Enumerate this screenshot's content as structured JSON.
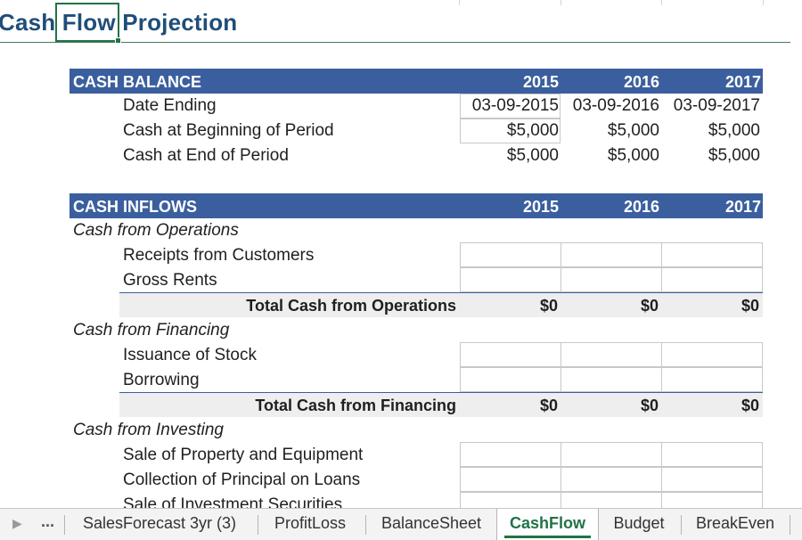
{
  "title": "Cash Flow Projection",
  "cash_balance": {
    "header": "CASH BALANCE",
    "years": [
      "2015",
      "2016",
      "2017"
    ],
    "rows": [
      {
        "label": "Date Ending",
        "values": [
          "03-09-2015",
          "03-09-2016",
          "03-09-2017"
        ]
      },
      {
        "label": "Cash at Beginning of Period",
        "values": [
          "$5,000",
          "$5,000",
          "$5,000"
        ]
      },
      {
        "label": "Cash at End of Period",
        "values": [
          "$5,000",
          "$5,000",
          "$5,000"
        ]
      }
    ]
  },
  "cash_inflows": {
    "header": "CASH INFLOWS",
    "years": [
      "2015",
      "2016",
      "2017"
    ],
    "operations": {
      "heading": "Cash from Operations",
      "items": [
        "Receipts from Customers",
        "Gross Rents"
      ],
      "total_label": "Total Cash from Operations",
      "totals": [
        "$0",
        "$0",
        "$0"
      ]
    },
    "financing": {
      "heading": "Cash from Financing",
      "items": [
        "Issuance of Stock",
        "Borrowing"
      ],
      "total_label": "Total Cash from Financing",
      "totals": [
        "$0",
        "$0",
        "$0"
      ]
    },
    "investing": {
      "heading": "Cash from Investing",
      "items": [
        "Sale of Property and Equipment",
        "Collection of Principal on Loans",
        "Sale of Investment Securities"
      ]
    }
  },
  "tabs": {
    "more": "...",
    "items": [
      "SalesForecast 3yr (3)",
      "ProfitLoss",
      "BalanceSheet",
      "CashFlow",
      "Budget",
      "BreakEven"
    ],
    "active": "CashFlow"
  },
  "colors": {
    "header_band": "#3b5f9e",
    "title": "#1f4e79",
    "active_tab": "#217346"
  }
}
